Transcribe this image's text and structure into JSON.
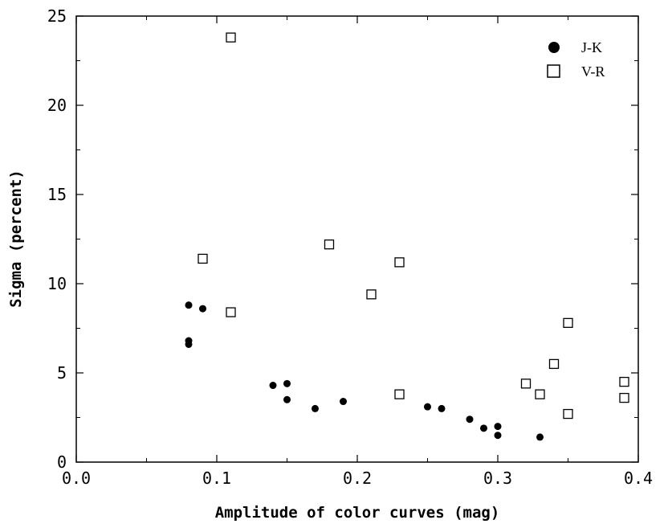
{
  "chart_data": {
    "type": "scatter",
    "xlabel": "Amplitude of color curves (mag)",
    "ylabel": "Sigma (percent)",
    "xlim": [
      0.0,
      0.4
    ],
    "ylim": [
      0,
      25
    ],
    "x_ticks": [
      "0.0",
      "0.1",
      "0.2",
      "0.3",
      "0.4"
    ],
    "y_ticks": [
      "0",
      "5",
      "10",
      "15",
      "20",
      "25"
    ],
    "legend_position": "top-right",
    "grid": false,
    "series": [
      {
        "name": "J-K",
        "marker": "filled-circle",
        "color": "#000000",
        "points": [
          {
            "x": 0.08,
            "y": 8.8
          },
          {
            "x": 0.08,
            "y": 6.8
          },
          {
            "x": 0.08,
            "y": 6.6
          },
          {
            "x": 0.09,
            "y": 8.6
          },
          {
            "x": 0.14,
            "y": 4.3
          },
          {
            "x": 0.15,
            "y": 4.4
          },
          {
            "x": 0.15,
            "y": 3.5
          },
          {
            "x": 0.17,
            "y": 3.0
          },
          {
            "x": 0.19,
            "y": 3.4
          },
          {
            "x": 0.25,
            "y": 3.1
          },
          {
            "x": 0.26,
            "y": 3.0
          },
          {
            "x": 0.28,
            "y": 2.4
          },
          {
            "x": 0.29,
            "y": 1.9
          },
          {
            "x": 0.3,
            "y": 2.0
          },
          {
            "x": 0.3,
            "y": 1.5
          },
          {
            "x": 0.33,
            "y": 1.4
          }
        ]
      },
      {
        "name": "V-R",
        "marker": "open-square",
        "color": "#000000",
        "points": [
          {
            "x": 0.11,
            "y": 23.8
          },
          {
            "x": 0.09,
            "y": 11.4
          },
          {
            "x": 0.11,
            "y": 8.4
          },
          {
            "x": 0.18,
            "y": 12.2
          },
          {
            "x": 0.21,
            "y": 9.4
          },
          {
            "x": 0.23,
            "y": 11.2
          },
          {
            "x": 0.23,
            "y": 3.8
          },
          {
            "x": 0.32,
            "y": 4.4
          },
          {
            "x": 0.33,
            "y": 3.8
          },
          {
            "x": 0.34,
            "y": 5.5
          },
          {
            "x": 0.35,
            "y": 7.8
          },
          {
            "x": 0.35,
            "y": 2.7
          },
          {
            "x": 0.39,
            "y": 4.5
          },
          {
            "x": 0.39,
            "y": 3.6
          }
        ]
      }
    ]
  }
}
